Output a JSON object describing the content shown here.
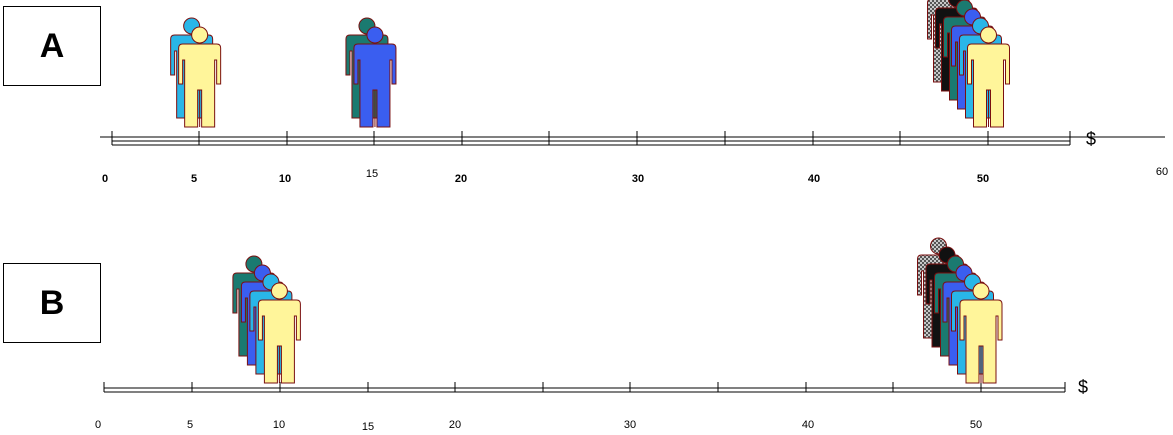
{
  "panel_a": {
    "label": "A",
    "tick_labels": [
      "0",
      "5",
      "10",
      "15",
      "20",
      "30",
      "40",
      "50",
      "60"
    ],
    "currency_symbol": "$",
    "groups": [
      {
        "value": 5,
        "people": [
          "#29b6e8",
          "#fff59a"
        ]
      },
      {
        "value": 15,
        "people": [
          "#1a7a70",
          "#3a5ef0"
        ]
      },
      {
        "value": 50,
        "people": [
          "#999999",
          "#111111",
          "#1a7a70",
          "#3a5ef0",
          "#29b6e8",
          "#fff59a"
        ]
      }
    ]
  },
  "panel_b": {
    "label": "B",
    "tick_labels": [
      "0",
      "5",
      "10",
      "15",
      "20",
      "30",
      "40",
      "50"
    ],
    "currency_symbol": "$",
    "groups": [
      {
        "value": 10,
        "people": [
          "#1a7a70",
          "#3a5ef0",
          "#29b6e8",
          "#fff59a"
        ]
      },
      {
        "value": 50,
        "people": [
          "#999999",
          "#111111",
          "#1a7a70",
          "#3a5ef0",
          "#29b6e8",
          "#fff59a"
        ]
      }
    ]
  }
}
